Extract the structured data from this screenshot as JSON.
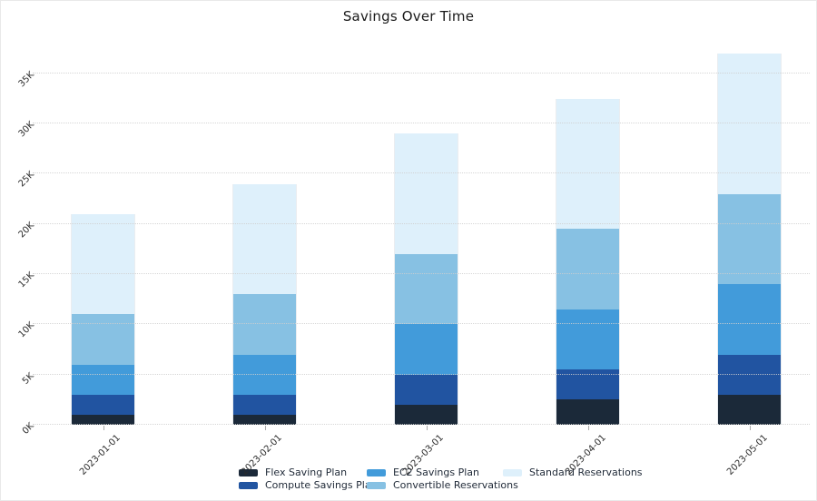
{
  "chart_data": {
    "type": "bar",
    "stacked": true,
    "title": "Savings Over Time",
    "xlabel": "",
    "ylabel": "",
    "categories": [
      "2023-01-01",
      "2023-02-01",
      "2023-03-01",
      "2023-04-01",
      "2023-05-01"
    ],
    "series": [
      {
        "name": "Flex Saving Plan",
        "color": "#1b2939",
        "values": [
          1000,
          1000,
          2000,
          2500,
          3000
        ]
      },
      {
        "name": "Compute Savings Plan",
        "color": "#2154a1",
        "values": [
          2000,
          2000,
          3000,
          3000,
          4000
        ]
      },
      {
        "name": "EC2 Savings Plan",
        "color": "#429bda",
        "values": [
          3000,
          4000,
          5000,
          6000,
          7000
        ]
      },
      {
        "name": "Convertible Reservations",
        "color": "#87c1e3",
        "values": [
          5000,
          6000,
          7000,
          8000,
          9000
        ]
      },
      {
        "name": "Standard Reservations",
        "color": "#def0fb",
        "values": [
          10000,
          11000,
          12000,
          13000,
          14000
        ]
      }
    ],
    "stack_totals": [
      21000,
      24000,
      29000,
      32500,
      37000
    ],
    "yticks": [
      "0K",
      "5K",
      "10K",
      "15K",
      "20K",
      "25K",
      "30K",
      "35K"
    ],
    "ytick_step": 5000,
    "ylim": [
      0,
      38150
    ],
    "grid": "horizontal-dotted",
    "legend_position": "bottom",
    "legend_columns": [
      [
        0,
        1
      ],
      [
        2,
        3
      ],
      [
        4
      ]
    ]
  },
  "colors": {
    "background": "#ffffff",
    "grid": "#cfcfcf",
    "tick_text": "#2b2b2b",
    "title_text": "#1a1a1a",
    "frame_border": "#e9e9e9"
  }
}
